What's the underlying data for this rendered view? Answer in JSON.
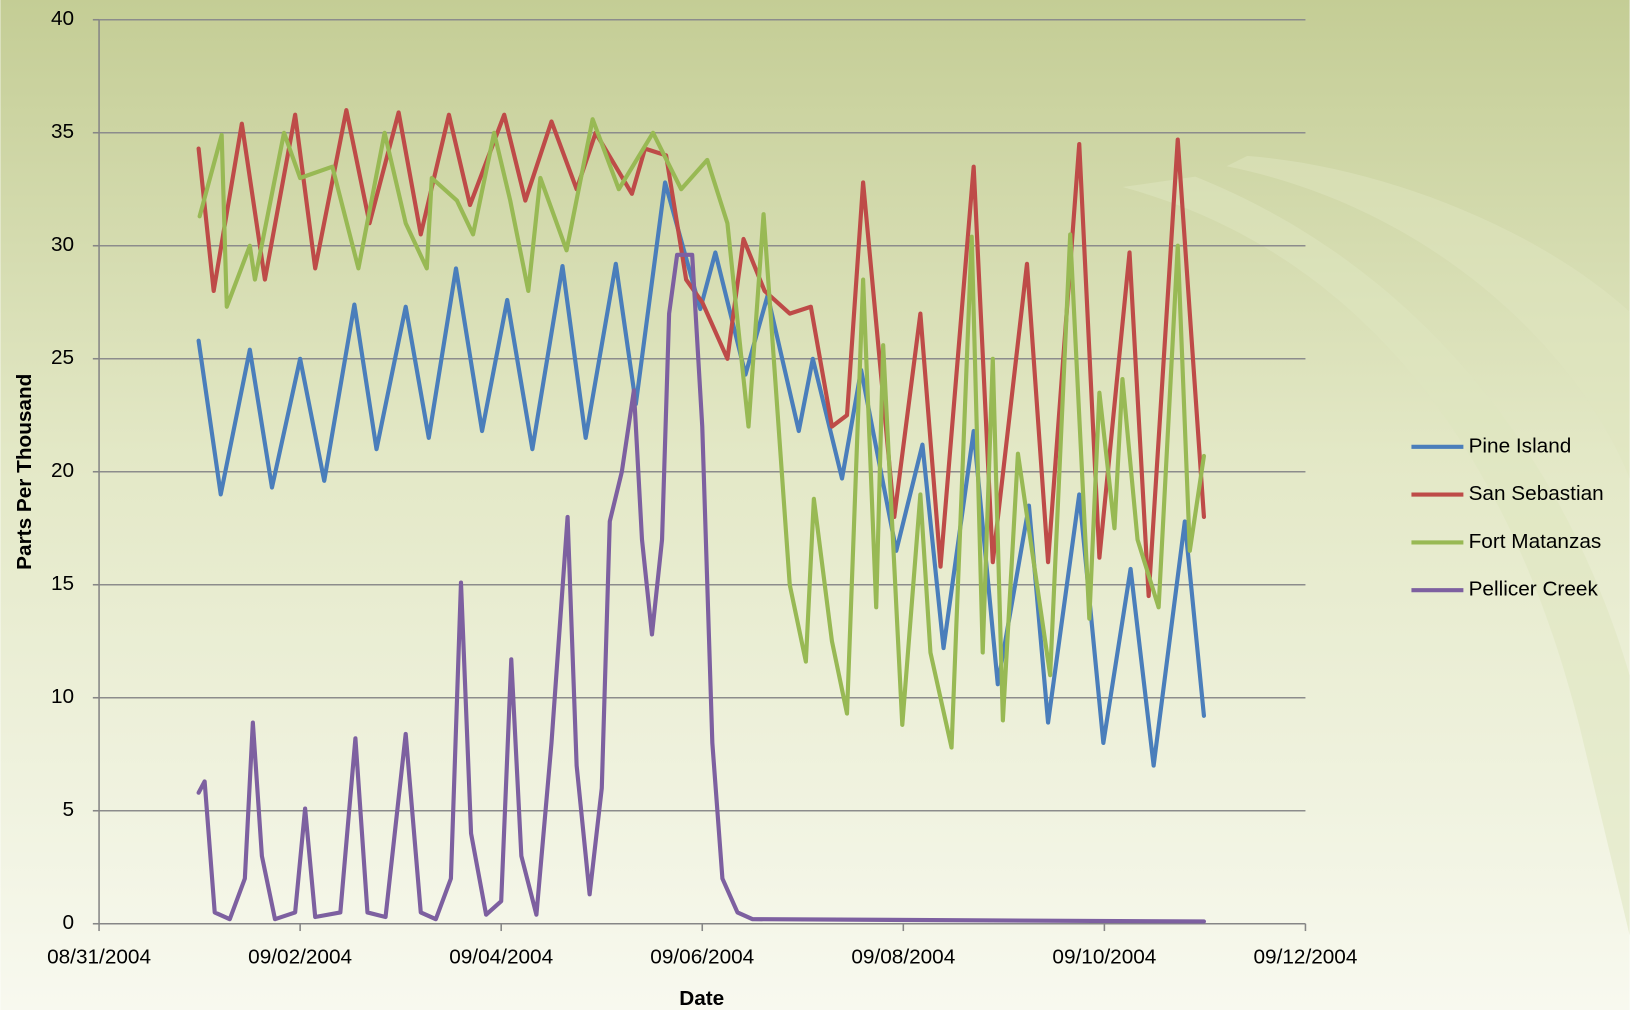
{
  "chart_data": {
    "type": "line",
    "x_title": "Date",
    "y_title": "Parts Per Thousand",
    "ylim": [
      0,
      40
    ],
    "yticks": [
      0,
      5,
      10,
      15,
      20,
      25,
      30,
      35,
      40
    ],
    "xlim": [
      0,
      12
    ],
    "xticks": [
      {
        "value": 0,
        "label": "08/31/2004"
      },
      {
        "value": 2,
        "label": "09/02/2004"
      },
      {
        "value": 4,
        "label": "09/04/2004"
      },
      {
        "value": 6,
        "label": "09/06/2004"
      },
      {
        "value": 8,
        "label": "09/08/2004"
      },
      {
        "value": 10,
        "label": "09/10/2004"
      },
      {
        "value": 12,
        "label": "09/12/2004"
      }
    ],
    "grid": true,
    "legend": "right",
    "series": [
      {
        "name": "Pine Island",
        "color": "#4a7ebb",
        "x": [
          0.99,
          1.21,
          1.5,
          1.72,
          2.0,
          2.24,
          2.54,
          2.76,
          3.05,
          3.28,
          3.55,
          3.81,
          4.06,
          4.31,
          4.61,
          4.84,
          5.14,
          5.34,
          5.63,
          5.98,
          6.13,
          6.43,
          6.65,
          6.96,
          7.1,
          7.39,
          7.58,
          7.93,
          8.19,
          8.4,
          8.7,
          8.94,
          9.25,
          9.44,
          9.75,
          9.99,
          10.26,
          10.49,
          10.8,
          10.99
        ],
        "values": [
          25.8,
          19,
          25.4,
          19.3,
          25,
          19.6,
          27.4,
          21,
          27.3,
          21.5,
          29,
          21.8,
          27.6,
          21,
          29.1,
          21.5,
          29.2,
          23,
          32.8,
          27.2,
          29.7,
          24.3,
          27.8,
          21.8,
          25,
          19.7,
          24.5,
          16.5,
          21.2,
          12.2,
          21.8,
          10.6,
          18.5,
          8.9,
          19,
          8,
          15.7,
          7,
          17.8,
          9.2
        ]
      },
      {
        "name": "San Sebastian",
        "color": "#be4b48",
        "x": [
          0.99,
          1.14,
          1.42,
          1.65,
          1.95,
          2.15,
          2.46,
          2.69,
          2.98,
          3.2,
          3.48,
          3.69,
          4.03,
          4.24,
          4.5,
          4.75,
          4.94,
          5.3,
          5.43,
          5.64,
          5.84,
          6.0,
          6.15,
          6.25,
          6.41,
          6.62,
          6.87,
          7.08,
          7.29,
          7.44,
          7.6,
          7.91,
          8.17,
          8.37,
          8.7,
          8.89,
          9.23,
          9.44,
          9.75,
          9.95,
          10.25,
          10.44,
          10.73,
          10.99
        ],
        "values": [
          34.3,
          28,
          35.4,
          28.5,
          35.8,
          29,
          36,
          31,
          35.9,
          30.5,
          35.8,
          31.8,
          35.8,
          32,
          35.5,
          32.5,
          35,
          32.3,
          34.3,
          34,
          28.5,
          27.5,
          26,
          25,
          30.3,
          28,
          27,
          27.3,
          22,
          22.5,
          32.8,
          18,
          27,
          15.8,
          33.5,
          16,
          29.2,
          16,
          34.5,
          16.2,
          29.7,
          14.5,
          34.7,
          18
        ]
      },
      {
        "name": "Fort Matanzas",
        "color": "#98b954",
        "x": [
          1.0,
          1.22,
          1.27,
          1.5,
          1.55,
          1.84,
          2.0,
          2.32,
          2.58,
          2.84,
          3.05,
          3.26,
          3.31,
          3.56,
          3.72,
          3.93,
          4.09,
          4.27,
          4.39,
          4.65,
          4.91,
          5.17,
          5.51,
          5.79,
          6.05,
          6.25,
          6.46,
          6.61,
          6.87,
          7.03,
          7.11,
          7.29,
          7.44,
          7.6,
          7.73,
          7.8,
          7.99,
          8.17,
          8.27,
          8.48,
          8.68,
          8.79,
          8.89,
          8.99,
          9.14,
          9.46,
          9.66,
          9.85,
          9.95,
          10.1,
          10.18,
          10.33,
          10.54,
          10.73,
          10.85,
          10.99
        ],
        "values": [
          31.3,
          34.9,
          27.3,
          30,
          28.5,
          35,
          33,
          33.5,
          29,
          35,
          31,
          29,
          33,
          32,
          30.5,
          35,
          32,
          28,
          33,
          29.8,
          35.6,
          32.5,
          35,
          32.5,
          33.8,
          31,
          22,
          31.4,
          15,
          11.6,
          18.8,
          12.5,
          9.3,
          28.5,
          14,
          25.6,
          8.8,
          19,
          12,
          7.8,
          30.4,
          12,
          25,
          9,
          20.8,
          11,
          30.5,
          13.5,
          23.5,
          17.5,
          24.1,
          17,
          14,
          30,
          16.5,
          20.7
        ]
      },
      {
        "name": "Pellicer Creek",
        "color": "#7d60a0",
        "x": [
          0.99,
          1.05,
          1.15,
          1.3,
          1.45,
          1.53,
          1.62,
          1.75,
          1.95,
          2.05,
          2.15,
          2.4,
          2.55,
          2.67,
          2.85,
          3.05,
          3.2,
          3.35,
          3.5,
          3.6,
          3.7,
          3.85,
          4.0,
          4.1,
          4.2,
          4.35,
          4.5,
          4.66,
          4.75,
          4.88,
          5.0,
          5.08,
          5.2,
          5.32,
          5.4,
          5.5,
          5.6,
          5.67,
          5.75,
          5.9,
          6.0,
          6.1,
          6.2,
          6.35,
          6.5,
          10.99
        ],
        "values": [
          5.8,
          6.3,
          0.5,
          0.2,
          2,
          8.9,
          3,
          0.2,
          0.5,
          5.1,
          0.3,
          0.5,
          8.2,
          0.5,
          0.3,
          8.4,
          0.5,
          0.2,
          2,
          15.1,
          4,
          0.4,
          1,
          11.7,
          3,
          0.4,
          8,
          18,
          7,
          1.3,
          6,
          17.8,
          20,
          23.6,
          17,
          12.8,
          17,
          27,
          29.6,
          29.6,
          22,
          8,
          2,
          0.5,
          0.2,
          0.1
        ]
      }
    ]
  }
}
